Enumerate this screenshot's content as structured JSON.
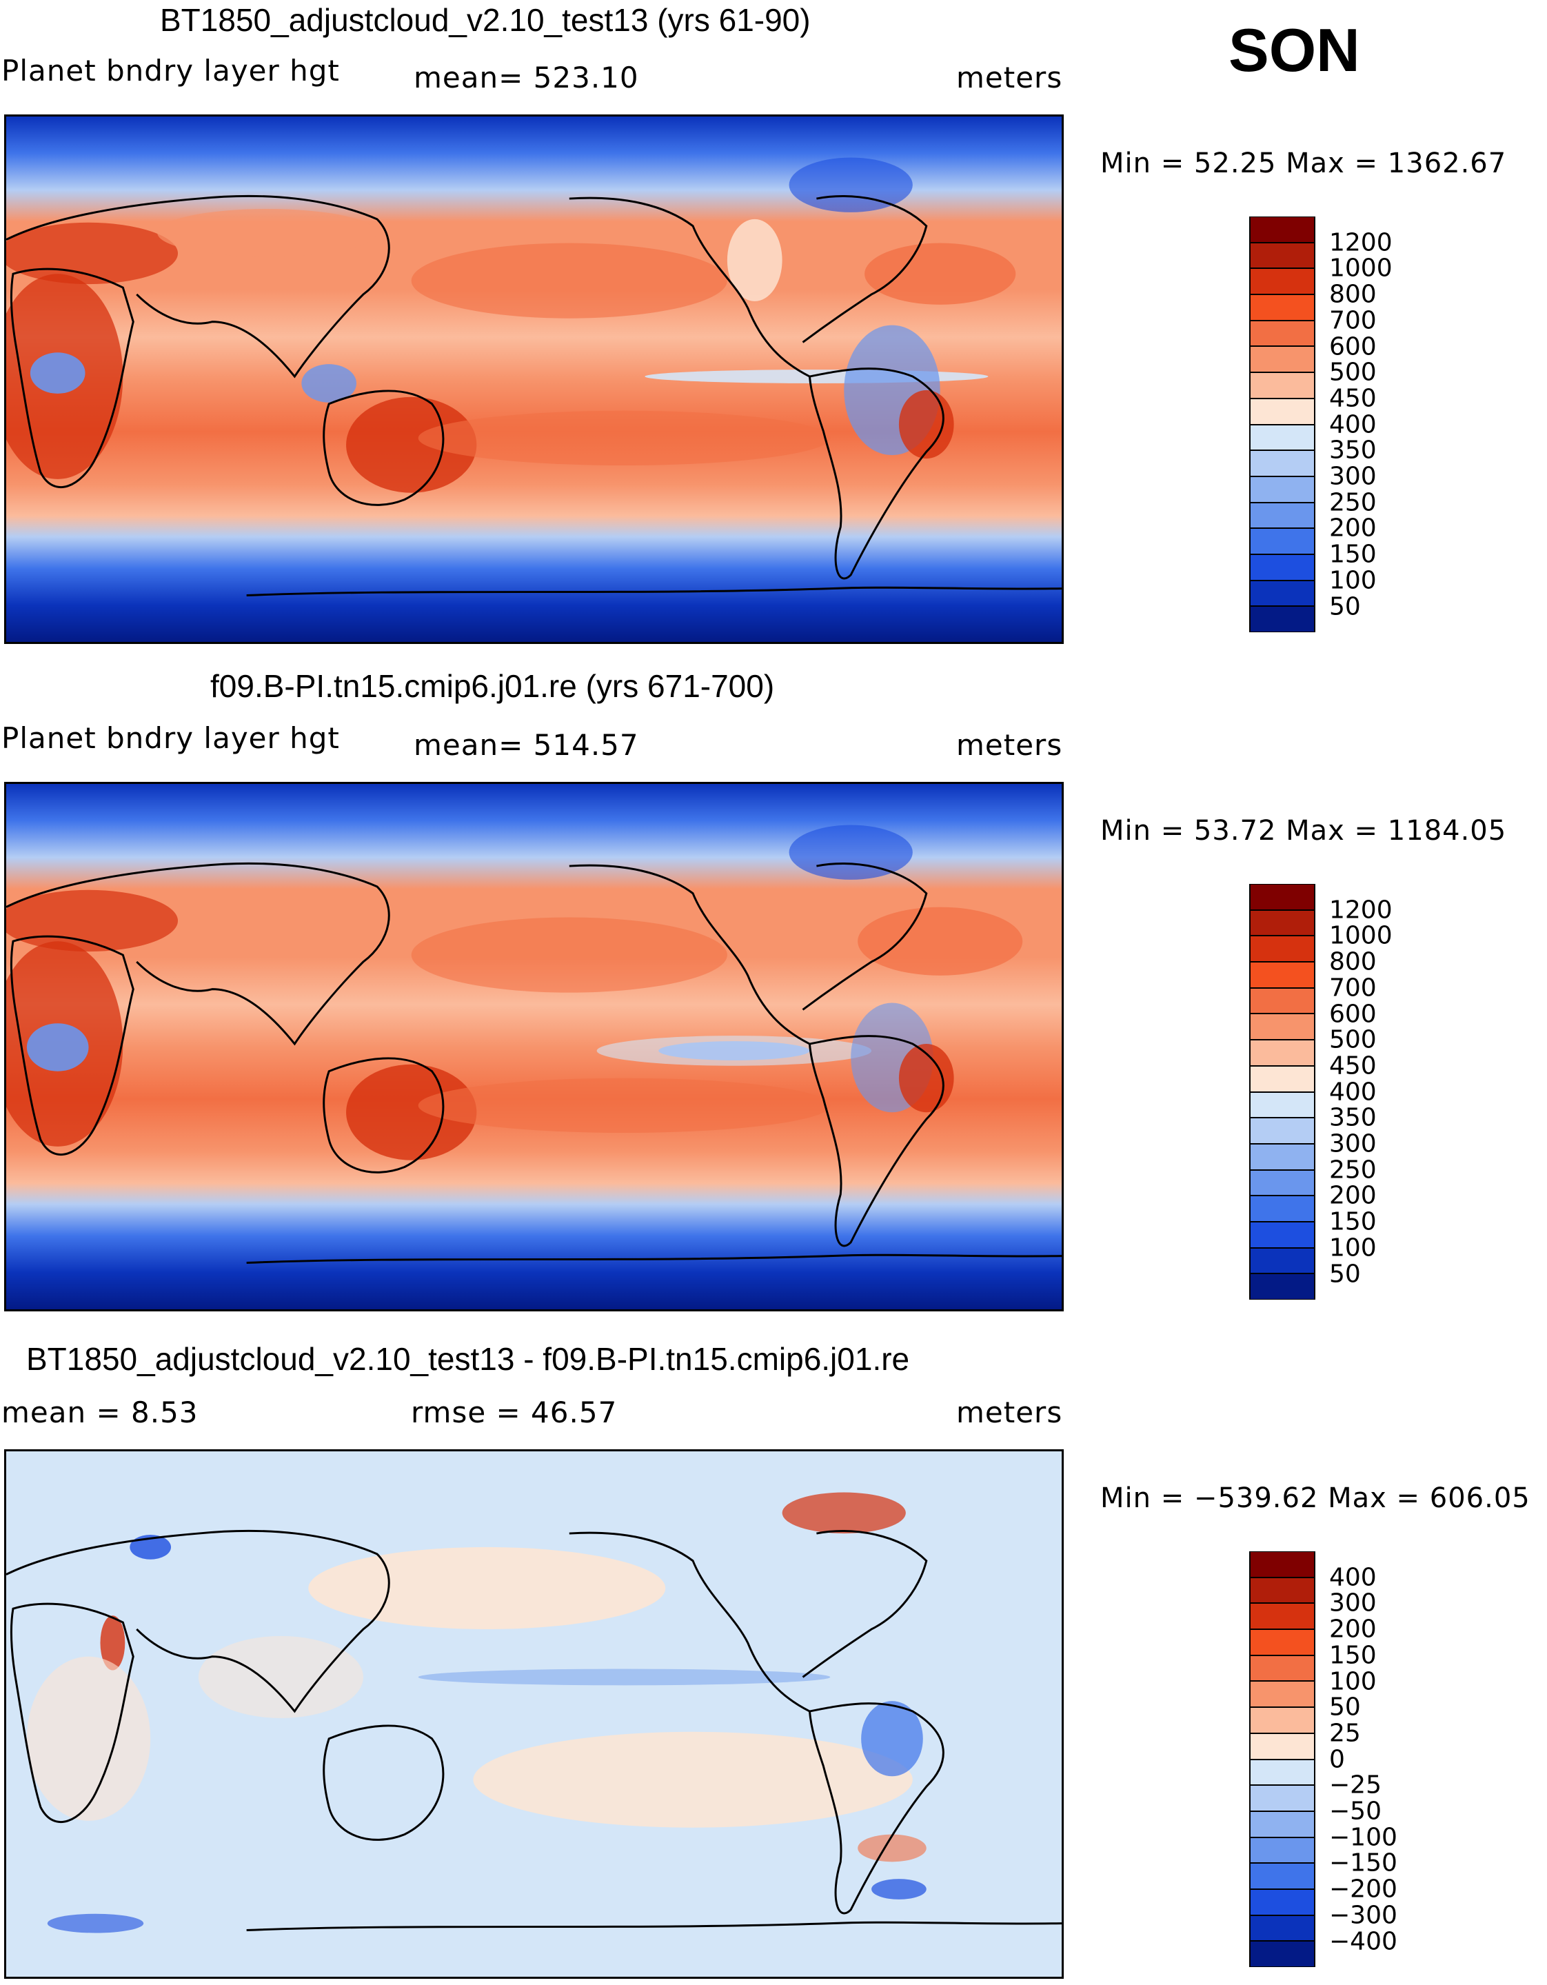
{
  "season": "SON",
  "panels": [
    {
      "title": "BT1850_adjustcloud_v2.10_test13 (yrs 61-90)",
      "left_label": "Planet bndry layer hgt",
      "center_label": "mean= 523.10",
      "units": "meters",
      "minmax": "Min =   52.25  Max  =  1362.67",
      "colorbar": {
        "colors": [
          "#7f0000",
          "#b01e0a",
          "#d6320f",
          "#f4511f",
          "#f26f44",
          "#f7946c",
          "#fbbb9c",
          "#fde5d4",
          "#d4e6f8",
          "#b4cdf4",
          "#8fb2f0",
          "#6a96ed",
          "#3f74ea",
          "#1d4fe0",
          "#0b33bb",
          "#031a86"
        ],
        "labels": [
          "1200",
          "1000",
          "800",
          "700",
          "600",
          "500",
          "450",
          "400",
          "350",
          "300",
          "250",
          "200",
          "150",
          "100",
          "50"
        ]
      }
    },
    {
      "title": "f09.B-PI.tn15.cmip6.j01.re (yrs 671-700)",
      "left_label": "Planet bndry layer hgt",
      "center_label": "mean= 514.57",
      "units": "meters",
      "minmax": "Min =   53.72  Max  =  1184.05",
      "colorbar": {
        "colors": [
          "#7f0000",
          "#b01e0a",
          "#d6320f",
          "#f4511f",
          "#f26f44",
          "#f7946c",
          "#fbbb9c",
          "#fde5d4",
          "#d4e6f8",
          "#b4cdf4",
          "#8fb2f0",
          "#6a96ed",
          "#3f74ea",
          "#1d4fe0",
          "#0b33bb",
          "#031a86"
        ],
        "labels": [
          "1200",
          "1000",
          "800",
          "700",
          "600",
          "500",
          "450",
          "400",
          "350",
          "300",
          "250",
          "200",
          "150",
          "100",
          "50"
        ]
      }
    },
    {
      "title": "BT1850_adjustcloud_v2.10_test13 - f09.B-PI.tn15.cmip6.j01.re",
      "left_label": "mean =    8.53",
      "center_label": "rmse =    46.57",
      "units": "meters",
      "minmax": "Min  = −539.62  Max  =  606.05",
      "colorbar": {
        "colors": [
          "#7f0000",
          "#b01e0a",
          "#d6320f",
          "#f4511f",
          "#f26f44",
          "#f7946c",
          "#fbbb9c",
          "#fde5d4",
          "#d4e6f8",
          "#b4cdf4",
          "#8fb2f0",
          "#6a96ed",
          "#3f74ea",
          "#1d4fe0",
          "#0b33bb",
          "#031a86"
        ],
        "labels": [
          "400",
          "300",
          "200",
          "150",
          "100",
          "50",
          "25",
          "0",
          "−25",
          "−50",
          "−100",
          "−150",
          "−200",
          "−300",
          "−400"
        ]
      }
    }
  ]
}
